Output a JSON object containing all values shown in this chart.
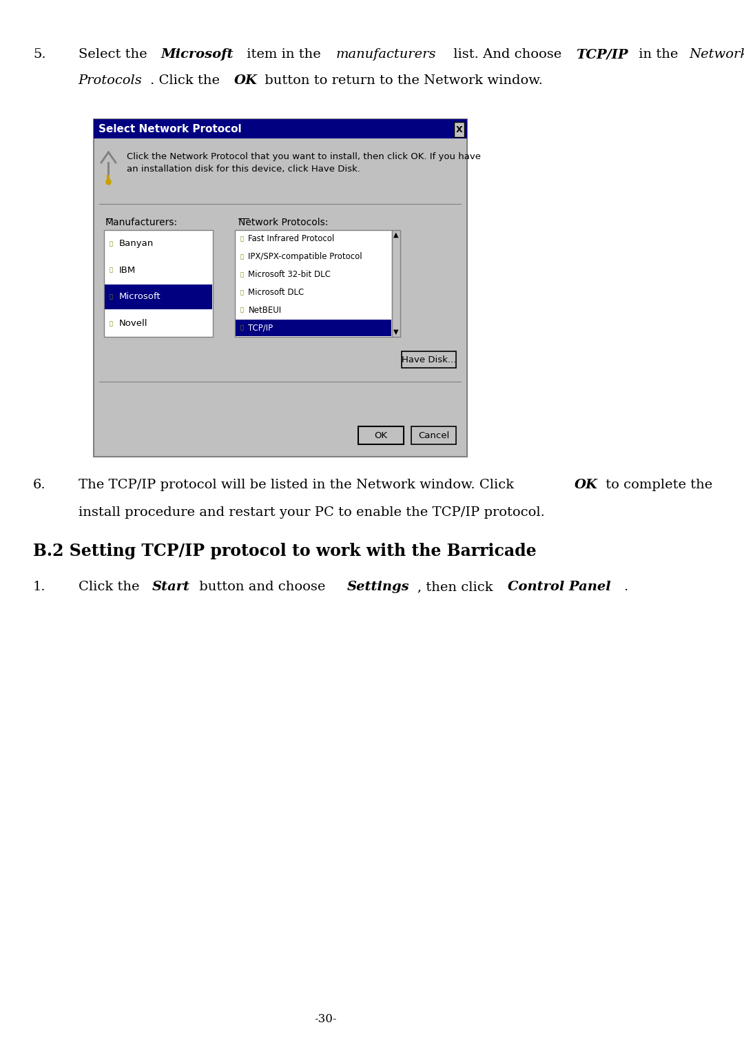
{
  "bg_color": "#ffffff",
  "text_color": "#000000",
  "page_number": "-30-",
  "step5_line1_parts": [
    {
      "text": "Select the ",
      "style": "normal"
    },
    {
      "text": "Microsoft",
      "style": "bold-italic"
    },
    {
      "text": " item in the ",
      "style": "normal"
    },
    {
      "text": "manufacturers",
      "style": "italic"
    },
    {
      "text": " list. And choose",
      "style": "normal"
    },
    {
      "text": "TCP/IP",
      "style": "bold-italic"
    },
    {
      "text": " in the ",
      "style": "normal"
    },
    {
      "text": "Network",
      "style": "italic"
    }
  ],
  "step5_line2_parts": [
    {
      "text": "Protocols",
      "style": "italic"
    },
    {
      "text": ". Click the ",
      "style": "normal"
    },
    {
      "text": "OK",
      "style": "bold-italic"
    },
    {
      "text": " button to return to the Network window.",
      "style": "normal"
    }
  ],
  "step6_line1_parts": [
    {
      "text": "The TCP/IP protocol will be listed in the Network window. Click ",
      "style": "normal"
    },
    {
      "text": "OK",
      "style": "bold-italic"
    },
    {
      "text": " to complete the",
      "style": "normal"
    }
  ],
  "step6_line2_parts": [
    {
      "text": "install procedure and restart your PC to enable the TCP/IP protocol.",
      "style": "normal"
    }
  ],
  "section_heading": "B.2 Setting TCP/IP protocol to work with the Barricade",
  "step1_parts": [
    {
      "text": "Click the ",
      "style": "normal"
    },
    {
      "text": "Start",
      "style": "bold-italic"
    },
    {
      "text": " button and choose ",
      "style": "normal"
    },
    {
      "text": "Settings",
      "style": "bold-italic"
    },
    {
      "text": ", then click ",
      "style": "normal"
    },
    {
      "text": "Control Panel",
      "style": "bold-italic"
    },
    {
      "text": ".",
      "style": "normal"
    }
  ],
  "dialog": {
    "title": "Select Network Protocol",
    "title_bg": "#000080",
    "title_fg": "#ffffff",
    "body_bg": "#c0c0c0",
    "instruction": "Click the Network Protocol that you want to install, then click OK. If you have\nan installation disk for this device, click Have Disk.",
    "manufacturers_label": "Manufacturers:",
    "protocols_label": "Network Protocols:",
    "manufacturers": [
      "Banyan",
      "IBM",
      "Microsoft",
      "Novell"
    ],
    "selected_manufacturer": "Microsoft",
    "protocols": [
      "Fast Infrared Protocol",
      "IPX/SPX-compatible Protocol",
      "Microsoft 32-bit DLC",
      "Microsoft DLC",
      "NetBEUI",
      "TCP/IP"
    ],
    "selected_protocol": "TCP/IP",
    "selected_color": "#000080",
    "list_bg": "#ffffff",
    "button_have_disk": "Have Disk...",
    "button_ok": "OK",
    "button_cancel": "Cancel"
  }
}
